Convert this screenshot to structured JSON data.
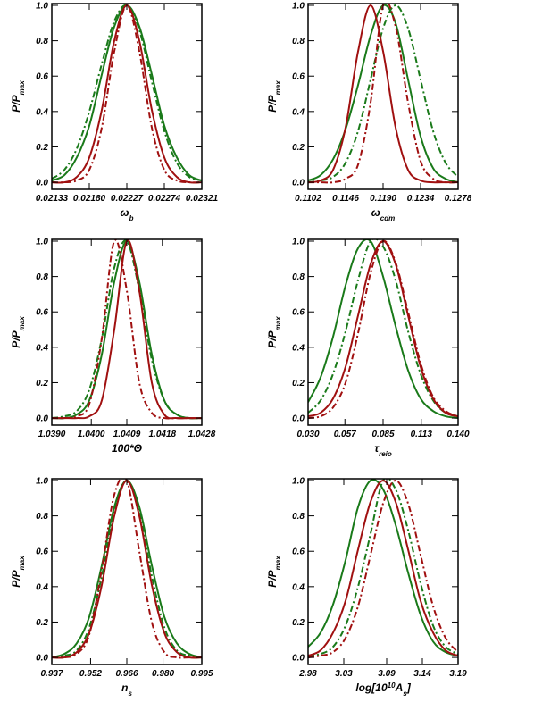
{
  "chart_data": [
    {
      "type": "line",
      "ylabel": [
        {
          "text": "P/P"
        },
        {
          "text": "max",
          "script": "sub"
        }
      ],
      "xlabel": [
        {
          "text": "ω"
        },
        {
          "text": "b",
          "script": "sub"
        }
      ],
      "xlim": [
        0.02133,
        0.02321
      ],
      "xticks": [
        0.02133,
        {
          "value": 0.0218,
          "label": "0.02180"
        },
        0.02227,
        0.02274,
        0.02321
      ],
      "ylim": [
        -0.04,
        1.01
      ],
      "yticks": [
        {
          "value": 0,
          "label": "0.0"
        },
        0.2,
        0.4,
        0.6,
        0.8,
        {
          "value": 1,
          "label": "1.0"
        }
      ],
      "x": [
        0.02133,
        0.021487,
        0.021643,
        0.0218,
        0.021957,
        0.022113,
        0.02227,
        0.022427,
        0.022583,
        0.02274,
        0.022897,
        0.023053,
        0.02321
      ],
      "series": [
        {
          "color": "#1a7a1a",
          "dash": "solid",
          "values": [
            0.01,
            0.04,
            0.14,
            0.32,
            0.61,
            0.88,
            1,
            0.88,
            0.61,
            0.32,
            0.14,
            0.04,
            0.01
          ]
        },
        {
          "color": "#1a7a1a",
          "dash": "dash-dot",
          "values": [
            0.02,
            0.07,
            0.19,
            0.4,
            0.67,
            0.91,
            1,
            0.86,
            0.57,
            0.29,
            0.11,
            0.03,
            0.01
          ]
        },
        {
          "color": "#a01010",
          "dash": "solid",
          "values": [
            0,
            0,
            0.03,
            0.14,
            0.41,
            0.8,
            1,
            0.8,
            0.41,
            0.14,
            0.03,
            0,
            0
          ]
        },
        {
          "color": "#a01010",
          "dash": "dash-dot",
          "values": [
            0,
            0,
            0.01,
            0.07,
            0.31,
            0.74,
            1,
            0.74,
            0.31,
            0.07,
            0.01,
            0,
            0
          ]
        }
      ]
    },
    {
      "type": "line",
      "ylabel": [
        {
          "text": "P/P"
        },
        {
          "text": "max",
          "script": "sub"
        }
      ],
      "xlabel": [
        {
          "text": "ω"
        },
        {
          "text": "cdm",
          "script": "sub"
        }
      ],
      "xlim": [
        0.1102,
        0.1278
      ],
      "xticks": [
        0.1102,
        0.1146,
        {
          "value": 0.119,
          "label": "0.1190"
        },
        0.1234,
        0.1278
      ],
      "ylim": [
        -0.04,
        1.01
      ],
      "yticks": [
        {
          "value": 0,
          "label": "0.0"
        },
        0.2,
        0.4,
        0.6,
        0.8,
        {
          "value": 1,
          "label": "1.0"
        }
      ],
      "x": [
        0.1102,
        0.111667,
        0.113133,
        0.1146,
        0.116067,
        0.117533,
        0.119,
        0.120467,
        0.121933,
        0.1234,
        0.124867,
        0.126333,
        0.1278
      ],
      "series": [
        {
          "color": "#1a7a1a",
          "dash": "solid",
          "values": [
            0.01,
            0.04,
            0.13,
            0.3,
            0.55,
            0.83,
            1,
            0.9,
            0.58,
            0.26,
            0.08,
            0.02,
            0
          ]
        },
        {
          "color": "#1a7a1a",
          "dash": "dash-dot",
          "values": [
            0,
            0.01,
            0.03,
            0.11,
            0.29,
            0.58,
            0.87,
            1,
            0.87,
            0.58,
            0.29,
            0.11,
            0.03
          ]
        },
        {
          "color": "#a01010",
          "dash": "solid",
          "values": [
            0,
            0.01,
            0.07,
            0.31,
            0.74,
            1,
            0.74,
            0.31,
            0.07,
            0.01,
            0,
            0,
            0
          ]
        },
        {
          "color": "#a01010",
          "dash": "dash-dot",
          "values": [
            0,
            0,
            0,
            0.02,
            0.1,
            0.45,
            1,
            0.88,
            0.45,
            0.12,
            0.02,
            0,
            0
          ]
        }
      ]
    },
    {
      "type": "line",
      "ylabel": [
        {
          "text": "P/P"
        },
        {
          "text": "max",
          "script": "sub"
        }
      ],
      "xlabel": [
        {
          "text": "100*Θ"
        }
      ],
      "xlim": [
        1.039,
        1.0428
      ],
      "xticks": [
        {
          "value": 1.039,
          "label": "1.0390"
        },
        {
          "value": 1.04,
          "label": "1.0400"
        },
        1.0409,
        1.0418,
        1.0428
      ],
      "ylim": [
        -0.04,
        1.01
      ],
      "yticks": [
        {
          "value": 0,
          "label": "0.0"
        },
        0.2,
        0.4,
        0.6,
        0.8,
        {
          "value": 1,
          "label": "1.0"
        }
      ],
      "x": [
        1.039,
        1.039317,
        1.039633,
        1.03995,
        1.040267,
        1.040583,
        1.0409,
        1.041217,
        1.041533,
        1.04185,
        1.042167,
        1.042483,
        1.0428
      ],
      "series": [
        {
          "color": "#1a7a1a",
          "dash": "solid",
          "values": [
            0,
            0,
            0.02,
            0.1,
            0.36,
            0.77,
            1,
            0.77,
            0.36,
            0.1,
            0.02,
            0,
            0
          ]
        },
        {
          "color": "#1a7a1a",
          "dash": "dash-dot",
          "values": [
            0,
            0.01,
            0.04,
            0.16,
            0.45,
            0.85,
            1,
            0.72,
            0.33,
            0.1,
            0.02,
            0,
            0
          ]
        },
        {
          "color": "#a01010",
          "dash": "solid",
          "values": [
            0,
            0,
            0,
            0.01,
            0.1,
            0.5,
            1,
            0.72,
            0.2,
            0.02,
            0,
            0,
            0
          ]
        },
        {
          "color": "#a01010",
          "dash": "dash-dot",
          "values": [
            0,
            0,
            0.01,
            0.08,
            0.45,
            1,
            0.72,
            0.2,
            0.03,
            0,
            0,
            0,
            0
          ]
        }
      ]
    },
    {
      "type": "line",
      "ylabel": [
        {
          "text": "P/P"
        },
        {
          "text": "max",
          "script": "sub"
        }
      ],
      "xlabel": [
        {
          "text": "τ"
        },
        {
          "text": "reio",
          "script": "sub"
        }
      ],
      "xlim": [
        0.03,
        0.14
      ],
      "xticks": [
        {
          "value": 0.03,
          "label": "0.030"
        },
        0.057,
        0.085,
        0.113,
        {
          "value": 0.14,
          "label": "0.140"
        }
      ],
      "ylim": [
        -0.04,
        1.01
      ],
      "yticks": [
        {
          "value": 0,
          "label": "0.0"
        },
        0.2,
        0.4,
        0.6,
        0.8,
        {
          "value": 1,
          "label": "1.0"
        }
      ],
      "x": [
        0.03,
        0.039167,
        0.048333,
        0.0575,
        0.066667,
        0.075833,
        0.085,
        0.094167,
        0.103333,
        0.1125,
        0.121667,
        0.130833,
        0.14
      ],
      "series": [
        {
          "color": "#1a7a1a",
          "dash": "solid",
          "values": [
            0.09,
            0.23,
            0.46,
            0.75,
            0.96,
            1,
            0.8,
            0.52,
            0.27,
            0.11,
            0.04,
            0.01,
            0
          ]
        },
        {
          "color": "#1a7a1a",
          "dash": "dash-dot",
          "values": [
            0.03,
            0.1,
            0.25,
            0.49,
            0.78,
            1,
            0.97,
            0.78,
            0.49,
            0.25,
            0.1,
            0.03,
            0.01
          ]
        },
        {
          "color": "#a01010",
          "dash": "solid",
          "values": [
            0.01,
            0.03,
            0.11,
            0.29,
            0.58,
            0.87,
            1,
            0.87,
            0.58,
            0.29,
            0.11,
            0.03,
            0.01
          ]
        },
        {
          "color": "#a01010",
          "dash": "dash-dot",
          "values": [
            0,
            0.01,
            0.06,
            0.2,
            0.48,
            0.82,
            1,
            0.88,
            0.6,
            0.31,
            0.12,
            0.04,
            0.01
          ]
        }
      ]
    },
    {
      "type": "line",
      "ylabel": [
        {
          "text": "P/P"
        },
        {
          "text": "max",
          "script": "sub"
        }
      ],
      "xlabel": [
        {
          "text": "n"
        },
        {
          "text": "s",
          "script": "sub"
        }
      ],
      "xlim": [
        0.937,
        0.995
      ],
      "xticks": [
        0.937,
        0.952,
        0.966,
        {
          "value": 0.98,
          "label": "0.980"
        },
        0.995
      ],
      "ylim": [
        -0.04,
        1.01
      ],
      "yticks": [
        {
          "value": 0,
          "label": "0.0"
        },
        0.2,
        0.4,
        0.6,
        0.8,
        {
          "value": 1,
          "label": "1.0"
        }
      ],
      "x": [
        0.937,
        0.941833,
        0.946667,
        0.9515,
        0.956333,
        0.961167,
        0.966,
        0.970833,
        0.975667,
        0.9805,
        0.985333,
        0.990167,
        0.995
      ],
      "series": [
        {
          "color": "#1a7a1a",
          "dash": "solid",
          "values": [
            0,
            0.02,
            0.08,
            0.23,
            0.52,
            0.85,
            1,
            0.85,
            0.52,
            0.23,
            0.08,
            0.02,
            0
          ]
        },
        {
          "color": "#1a7a1a",
          "dash": "dash-dot",
          "values": [
            0,
            0.01,
            0.04,
            0.17,
            0.46,
            0.82,
            1,
            0.82,
            0.46,
            0.17,
            0.04,
            0.01,
            0
          ]
        },
        {
          "color": "#a01010",
          "dash": "solid",
          "values": [
            0,
            0,
            0.03,
            0.14,
            0.41,
            0.8,
            1,
            0.8,
            0.41,
            0.14,
            0.03,
            0,
            0
          ]
        },
        {
          "color": "#a01010",
          "dash": "dash-dot",
          "values": [
            0,
            0,
            0.02,
            0.13,
            0.5,
            0.92,
            1,
            0.6,
            0.2,
            0.03,
            0,
            0,
            0
          ]
        }
      ]
    },
    {
      "type": "line",
      "ylabel": [
        {
          "text": "P/P"
        },
        {
          "text": "max",
          "script": "sub"
        }
      ],
      "xlabel": [
        {
          "text": "log[10"
        },
        {
          "text": "10",
          "script": "sup"
        },
        {
          "text": "A"
        },
        {
          "text": "s",
          "script": "sub"
        },
        {
          "text": "]"
        }
      ],
      "xlim": [
        2.98,
        3.19
      ],
      "xticks": [
        2.98,
        3.03,
        3.09,
        3.14,
        3.19
      ],
      "ylim": [
        -0.04,
        1.01
      ],
      "yticks": [
        {
          "value": 0,
          "label": "0.0"
        },
        0.2,
        0.4,
        0.6,
        0.8,
        {
          "value": 1,
          "label": "1.0"
        }
      ],
      "x": [
        2.98,
        2.9975,
        3.015,
        3.0325,
        3.05,
        3.0675,
        3.085,
        3.1025,
        3.12,
        3.1375,
        3.155,
        3.1725,
        3.19
      ],
      "series": [
        {
          "color": "#1a7a1a",
          "dash": "solid",
          "values": [
            0.06,
            0.14,
            0.3,
            0.55,
            0.85,
            1,
            0.95,
            0.75,
            0.48,
            0.24,
            0.09,
            0.03,
            0.01
          ]
        },
        {
          "color": "#1a7a1a",
          "dash": "dash-dot",
          "values": [
            0.01,
            0.02,
            0.06,
            0.18,
            0.4,
            0.7,
            1,
            0.95,
            0.72,
            0.42,
            0.18,
            0.06,
            0.02
          ]
        },
        {
          "color": "#a01010",
          "dash": "solid",
          "values": [
            0.01,
            0.04,
            0.14,
            0.32,
            0.61,
            0.88,
            1,
            0.88,
            0.61,
            0.32,
            0.14,
            0.04,
            0.01
          ]
        },
        {
          "color": "#a01010",
          "dash": "dash-dot",
          "values": [
            0,
            0.01,
            0.03,
            0.11,
            0.29,
            0.58,
            0.87,
            1,
            0.87,
            0.58,
            0.29,
            0.11,
            0.03
          ]
        }
      ]
    }
  ]
}
